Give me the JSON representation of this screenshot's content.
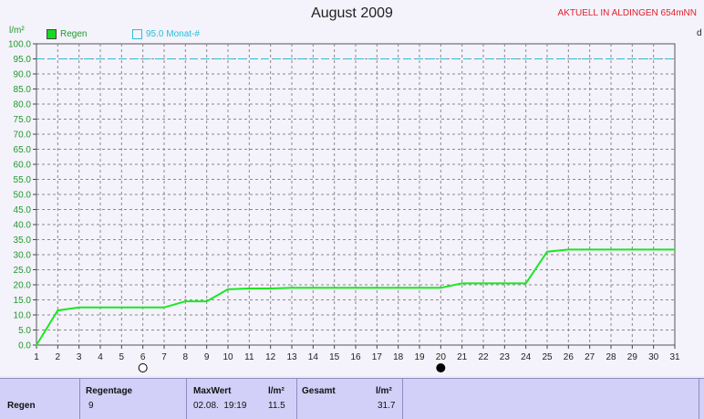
{
  "title": "August 2009",
  "station": "AKTUELL IN ALDINGEN 654mNN",
  "y_unit": "l/m²",
  "right_label": "d",
  "legend": {
    "regen": "Regen",
    "mark": "95.0 Monat-#"
  },
  "colors": {
    "series": "#18e820",
    "reference": "#27c0d8",
    "tick_text": "#1f9a2a"
  },
  "chart_data": {
    "type": "line",
    "title": "August 2009",
    "xlabel": "",
    "ylabel": "l/m²",
    "x_ticks": [
      1,
      2,
      3,
      4,
      5,
      6,
      7,
      8,
      9,
      10,
      11,
      12,
      13,
      14,
      15,
      16,
      17,
      18,
      19,
      20,
      21,
      22,
      23,
      24,
      25,
      26,
      27,
      28,
      29,
      30,
      31
    ],
    "y_ticks": [
      "0.0",
      "5.0",
      "10.0",
      "15.0",
      "20.0",
      "25.0",
      "30.0",
      "35.0",
      "40.0",
      "45.0",
      "50.0",
      "55.0",
      "60.0",
      "65.0",
      "70.0",
      "75.0",
      "80.0",
      "85.0",
      "90.0",
      "95.0",
      "100.0"
    ],
    "xlim": [
      1,
      31
    ],
    "ylim": [
      0,
      100
    ],
    "grid": true,
    "legend_position": "top-left",
    "series": [
      {
        "name": "Regen",
        "points": [
          [
            1,
            0
          ],
          [
            2,
            11.5
          ],
          [
            3,
            12.5
          ],
          [
            4,
            12.5
          ],
          [
            5,
            12.5
          ],
          [
            6,
            12.5
          ],
          [
            7,
            12.5
          ],
          [
            8,
            14.5
          ],
          [
            9,
            14.5
          ],
          [
            10,
            18.5
          ],
          [
            11,
            18.8
          ],
          [
            12,
            18.8
          ],
          [
            13,
            19.0
          ],
          [
            14,
            19.0
          ],
          [
            15,
            19.0
          ],
          [
            16,
            19.0
          ],
          [
            17,
            19.0
          ],
          [
            18,
            19.0
          ],
          [
            19,
            19.0
          ],
          [
            20,
            19.0
          ],
          [
            21,
            20.5
          ],
          [
            22,
            20.5
          ],
          [
            23,
            20.5
          ],
          [
            24,
            20.5
          ],
          [
            25,
            31.0
          ],
          [
            26,
            31.7
          ],
          [
            27,
            31.7
          ],
          [
            28,
            31.7
          ],
          [
            29,
            31.7
          ],
          [
            30,
            31.7
          ],
          [
            31,
            31.7
          ]
        ]
      }
    ],
    "reference_line": {
      "label": "95.0 Monat-#",
      "value": 95.0
    },
    "moon_markers": [
      {
        "day": 6,
        "phase": "full-moon-icon"
      },
      {
        "day": 20,
        "phase": "new-moon-icon"
      }
    ]
  },
  "table": {
    "row_label": "Regen",
    "regentage_label": "Regentage",
    "regentage_value": "9",
    "maxwert_label": "MaxWert",
    "maxwert_unit": "l/m²",
    "maxwert_date": "02.08.  19:19",
    "maxwert_value": "11.5",
    "gesamt_label": "Gesamt",
    "gesamt_unit": "l/m²",
    "gesamt_value": "31.7"
  }
}
